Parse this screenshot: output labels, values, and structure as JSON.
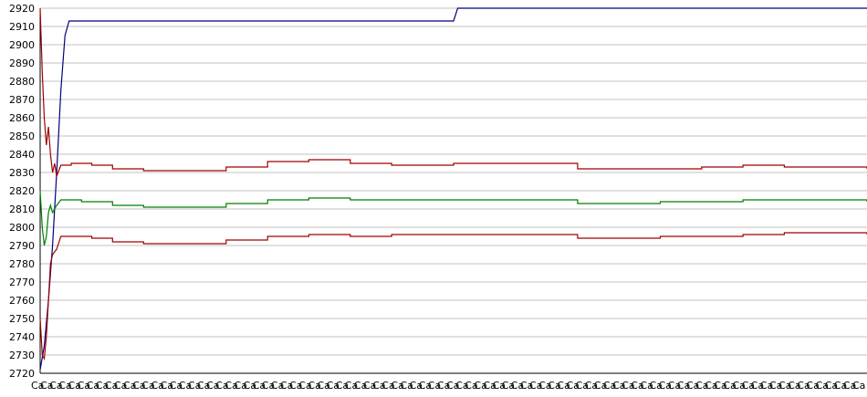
{
  "chart_data": {
    "type": "line",
    "title": "",
    "xlabel": "",
    "ylabel": "",
    "ylim": [
      2720,
      2920
    ],
    "yticks": [
      2720,
      2730,
      2740,
      2750,
      2760,
      2770,
      2780,
      2790,
      2800,
      2810,
      2820,
      2830,
      2840,
      2850,
      2860,
      2870,
      2880,
      2890,
      2900,
      2910,
      2920
    ],
    "grid": true,
    "legend": "none",
    "x_count": 400,
    "x_tick_labels": [
      "Ca",
      "Ca",
      "Ca",
      "Ca",
      "Ca",
      "Ca",
      "Ca",
      "Ca",
      "Ca",
      "Ca",
      "Ca",
      "Ca",
      "Ca",
      "Ca",
      "Ca",
      "Ca",
      "Ca",
      "Ca",
      "Ca",
      "Ca",
      "Ca",
      "Ca",
      "Ca",
      "Ca",
      "Ca",
      "Ca",
      "Ca",
      "Ca",
      "Ca",
      "Ca",
      "Ca",
      "Ca",
      "Ca",
      "Ca",
      "Ca",
      "Ca",
      "Ca",
      "Ca",
      "Ca",
      "Ca",
      "Ca",
      "Ca",
      "Ca",
      "Ca",
      "Ca",
      "Ca",
      "Ca",
      "Ca",
      "Ca",
      "Ca",
      "Ca",
      "Ca",
      "Ca",
      "Ca",
      "Ca",
      "Ca",
      "Ca",
      "Ca",
      "Ca",
      "Ca",
      "Ca",
      "Ca",
      "Ca",
      "Ca",
      "Ca",
      "Ca",
      "Ca",
      "Ca",
      "Ca",
      "Ca",
      "Ca",
      "Ca",
      "Ca",
      "Ca",
      "Ca",
      "Ca",
      "Ca",
      "Ca",
      "Ca",
      "Ca",
      "Ca",
      "Ca",
      "Ca",
      "Ca",
      "Ca",
      "Ca",
      "Ca",
      "Ca",
      "Ca",
      "Ca"
    ],
    "series": [
      {
        "color": "#00007f",
        "points": [
          [
            0,
            2722
          ],
          [
            2,
            2735
          ],
          [
            4,
            2760
          ],
          [
            6,
            2790
          ],
          [
            8,
            2830
          ],
          [
            10,
            2875
          ],
          [
            12,
            2905
          ],
          [
            14,
            2913
          ],
          [
            200,
            2913
          ],
          [
            202,
            2920
          ],
          [
            400,
            2920
          ]
        ]
      },
      {
        "color": "#9f0000",
        "points": [
          [
            0,
            2920
          ],
          [
            1,
            2885
          ],
          [
            2,
            2860
          ],
          [
            3,
            2845
          ],
          [
            4,
            2855
          ],
          [
            5,
            2840
          ],
          [
            6,
            2830
          ],
          [
            7,
            2835
          ],
          [
            8,
            2828
          ],
          [
            10,
            2834
          ],
          [
            15,
            2835
          ],
          [
            25,
            2834
          ],
          [
            35,
            2832
          ],
          [
            50,
            2831
          ],
          [
            70,
            2831
          ],
          [
            90,
            2833
          ],
          [
            110,
            2836
          ],
          [
            130,
            2837
          ],
          [
            150,
            2835
          ],
          [
            170,
            2834
          ],
          [
            200,
            2835
          ],
          [
            240,
            2835
          ],
          [
            260,
            2832
          ],
          [
            280,
            2832
          ],
          [
            300,
            2832
          ],
          [
            320,
            2833
          ],
          [
            340,
            2834
          ],
          [
            360,
            2833
          ],
          [
            380,
            2833
          ],
          [
            400,
            2832
          ]
        ]
      },
      {
        "color": "#007f00",
        "points": [
          [
            0,
            2820
          ],
          [
            1,
            2800
          ],
          [
            2,
            2790
          ],
          [
            3,
            2795
          ],
          [
            4,
            2808
          ],
          [
            5,
            2812
          ],
          [
            6,
            2808
          ],
          [
            8,
            2812
          ],
          [
            10,
            2815
          ],
          [
            20,
            2814
          ],
          [
            35,
            2812
          ],
          [
            50,
            2811
          ],
          [
            70,
            2811
          ],
          [
            90,
            2813
          ],
          [
            110,
            2815
          ],
          [
            130,
            2816
          ],
          [
            150,
            2815
          ],
          [
            170,
            2815
          ],
          [
            200,
            2815
          ],
          [
            240,
            2815
          ],
          [
            260,
            2813
          ],
          [
            280,
            2813
          ],
          [
            300,
            2814
          ],
          [
            320,
            2814
          ],
          [
            340,
            2815
          ],
          [
            360,
            2815
          ],
          [
            380,
            2815
          ],
          [
            400,
            2814
          ]
        ]
      },
      {
        "color": "#9f0000",
        "points": [
          [
            0,
            2750
          ],
          [
            1,
            2730
          ],
          [
            2,
            2728
          ],
          [
            3,
            2740
          ],
          [
            4,
            2760
          ],
          [
            5,
            2780
          ],
          [
            6,
            2785
          ],
          [
            8,
            2788
          ],
          [
            10,
            2795
          ],
          [
            15,
            2795
          ],
          [
            25,
            2794
          ],
          [
            35,
            2792
          ],
          [
            50,
            2791
          ],
          [
            70,
            2791
          ],
          [
            90,
            2793
          ],
          [
            110,
            2795
          ],
          [
            130,
            2796
          ],
          [
            150,
            2795
          ],
          [
            170,
            2796
          ],
          [
            200,
            2796
          ],
          [
            240,
            2796
          ],
          [
            260,
            2794
          ],
          [
            280,
            2794
          ],
          [
            300,
            2795
          ],
          [
            320,
            2795
          ],
          [
            340,
            2796
          ],
          [
            360,
            2797
          ],
          [
            380,
            2797
          ],
          [
            400,
            2796
          ]
        ]
      }
    ]
  }
}
